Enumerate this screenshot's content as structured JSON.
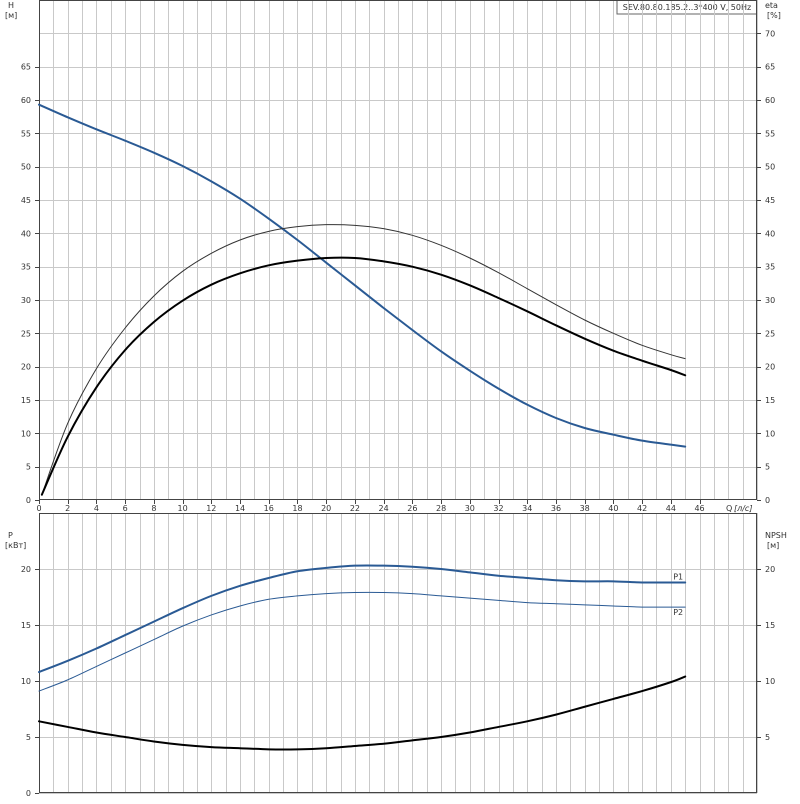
{
  "title_box": "SEV.80.80.185.2..3*400 V, 50Hz",
  "chart_data": [
    {
      "type": "line",
      "panel": "head-efficiency",
      "x_axis": {
        "label": "Q",
        "unit": "[л/с]",
        "range": [
          0,
          50
        ],
        "ticks": [
          0,
          2,
          4,
          6,
          8,
          10,
          12,
          14,
          16,
          18,
          20,
          22,
          24,
          26,
          28,
          30,
          32,
          34,
          36,
          38,
          40,
          42,
          44,
          46
        ]
      },
      "y_left": {
        "label": "H",
        "unit": "[м]",
        "range": [
          0,
          75
        ],
        "ticks": [
          0,
          5,
          10,
          15,
          20,
          25,
          30,
          35,
          40,
          45,
          50,
          55,
          60,
          65
        ]
      },
      "y_right": {
        "label": "eta",
        "unit": "[%]",
        "range": [
          0,
          75
        ],
        "ticks": [
          0,
          5,
          10,
          15,
          20,
          25,
          30,
          35,
          40,
          45,
          50,
          55,
          60,
          65,
          70
        ]
      },
      "grid": true,
      "series": [
        {
          "axis": "left",
          "color": "#2a5a94",
          "width": 2,
          "x": [
            0,
            2,
            4,
            6,
            8,
            10,
            12,
            14,
            16,
            18,
            20,
            22,
            24,
            26,
            28,
            30,
            32,
            34,
            36,
            38,
            40,
            42,
            44,
            45
          ],
          "y": [
            59.3,
            57.4,
            55.6,
            53.9,
            52.1,
            50.1,
            47.8,
            45.2,
            42.2,
            39.0,
            35.6,
            32.2,
            28.8,
            25.5,
            22.3,
            19.4,
            16.7,
            14.3,
            12.3,
            10.8,
            9.8,
            8.9,
            8.3,
            8.0
          ]
        },
        {
          "axis": "right",
          "color": "#333333",
          "width": 1,
          "x": [
            0.2,
            2,
            4,
            6,
            8,
            10,
            12,
            14,
            16,
            18,
            20,
            22,
            24,
            26,
            28,
            30,
            32,
            34,
            36,
            38,
            40,
            42,
            44,
            45
          ],
          "y": [
            0.8,
            11.5,
            19.7,
            25.8,
            30.6,
            34.3,
            37.0,
            39.0,
            40.3,
            41.0,
            41.3,
            41.2,
            40.7,
            39.7,
            38.2,
            36.3,
            34.1,
            31.7,
            29.3,
            27.0,
            25.0,
            23.2,
            21.8,
            21.2
          ]
        },
        {
          "axis": "right",
          "color": "#000000",
          "width": 2,
          "x": [
            0.2,
            2,
            4,
            6,
            8,
            10,
            12,
            14,
            16,
            18,
            20,
            22,
            24,
            26,
            28,
            30,
            32,
            34,
            36,
            38,
            40,
            42,
            44,
            45
          ],
          "y": [
            0.8,
            9.5,
            16.9,
            22.5,
            26.7,
            29.9,
            32.3,
            34.0,
            35.2,
            35.9,
            36.3,
            36.3,
            35.8,
            35.0,
            33.8,
            32.2,
            30.3,
            28.3,
            26.2,
            24.2,
            22.4,
            20.9,
            19.5,
            18.7
          ]
        }
      ]
    },
    {
      "type": "line",
      "panel": "power-npsh",
      "x_axis": {
        "range": [
          0,
          50
        ],
        "ticks": []
      },
      "y_left": {
        "label": "P",
        "unit": "[кВт]",
        "range": [
          0,
          25
        ],
        "ticks": [
          0,
          5,
          10,
          15,
          20
        ]
      },
      "y_right": {
        "label": "NPSH",
        "unit": "[м]",
        "range": [
          0,
          25
        ],
        "ticks": [
          5,
          10,
          15,
          20
        ]
      },
      "grid": true,
      "series": [
        {
          "name": "P1",
          "axis": "left",
          "color": "#2a5a94",
          "width": 2,
          "x": [
            0,
            2,
            4,
            6,
            8,
            10,
            12,
            14,
            16,
            18,
            20,
            22,
            24,
            26,
            28,
            30,
            32,
            34,
            36,
            38,
            40,
            42,
            44,
            45
          ],
          "y": [
            10.8,
            11.8,
            12.9,
            14.1,
            15.3,
            16.5,
            17.6,
            18.5,
            19.2,
            19.8,
            20.1,
            20.3,
            20.3,
            20.2,
            20.0,
            19.7,
            19.4,
            19.2,
            19.0,
            18.9,
            18.9,
            18.8,
            18.8,
            18.8
          ]
        },
        {
          "name": "P2",
          "axis": "left",
          "color": "#2a5a94",
          "width": 1,
          "x": [
            0,
            2,
            4,
            6,
            8,
            10,
            12,
            14,
            16,
            18,
            20,
            22,
            24,
            26,
            28,
            30,
            32,
            34,
            36,
            38,
            40,
            42,
            44,
            45
          ],
          "y": [
            9.1,
            10.1,
            11.3,
            12.5,
            13.7,
            14.9,
            15.9,
            16.7,
            17.3,
            17.6,
            17.8,
            17.9,
            17.9,
            17.8,
            17.6,
            17.4,
            17.2,
            17.0,
            16.9,
            16.8,
            16.7,
            16.6,
            16.6,
            16.6
          ]
        },
        {
          "axis": "right",
          "color": "#000000",
          "width": 2,
          "x": [
            0,
            2,
            4,
            6,
            8,
            10,
            12,
            14,
            16,
            18,
            20,
            22,
            24,
            26,
            28,
            30,
            32,
            34,
            36,
            38,
            40,
            42,
            44,
            45
          ],
          "y": [
            6.4,
            5.9,
            5.4,
            5.0,
            4.6,
            4.3,
            4.1,
            4.0,
            3.9,
            3.9,
            4.0,
            4.2,
            4.4,
            4.7,
            5.0,
            5.4,
            5.9,
            6.4,
            7.0,
            7.7,
            8.4,
            9.1,
            9.9,
            10.4
          ]
        }
      ]
    }
  ]
}
